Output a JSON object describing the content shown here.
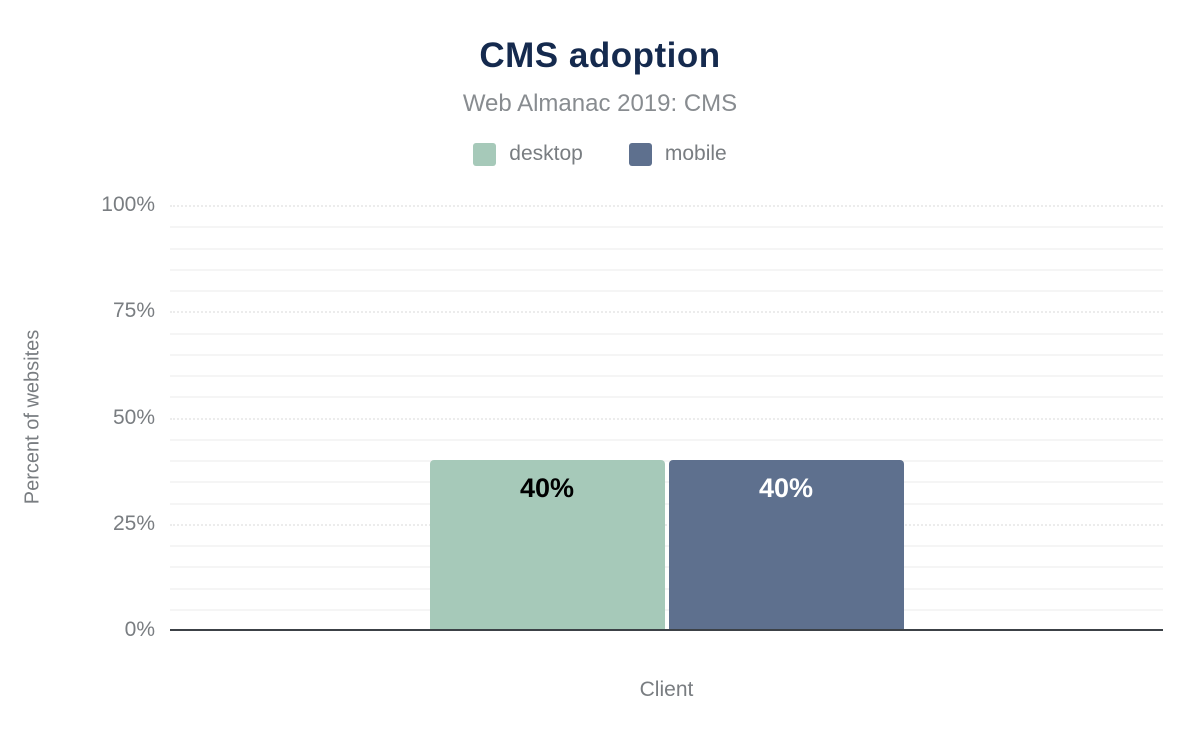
{
  "chart_data": {
    "type": "bar",
    "title": "CMS adoption",
    "subtitle": "Web Almanac 2019: CMS",
    "xlabel": "Client",
    "ylabel": "Percent of websites",
    "categories": [
      "Client"
    ],
    "series": [
      {
        "name": "desktop",
        "values": [
          40
        ],
        "data_labels": [
          "40%"
        ],
        "color": "#a6c9b9",
        "label_color": "#000000"
      },
      {
        "name": "mobile",
        "values": [
          40
        ],
        "data_labels": [
          "40%"
        ],
        "color": "#5e708e",
        "label_color": "#ffffff"
      }
    ],
    "ylim": [
      0,
      100
    ],
    "y_ticks": [
      {
        "value": 0,
        "label": "0%"
      },
      {
        "value": 25,
        "label": "25%"
      },
      {
        "value": 50,
        "label": "50%"
      },
      {
        "value": 75,
        "label": "75%"
      },
      {
        "value": 100,
        "label": "100%"
      }
    ],
    "grid": {
      "minor_step": 5,
      "major_step": 25
    },
    "legend_position": "top",
    "colors": {
      "title": "#152a4e",
      "subtitle": "#888c90",
      "axis_text": "#797d81",
      "axis_line": "#3c4146",
      "minor_grid": "#f5f5f5",
      "major_grid": "#ececec",
      "background": "#ffffff"
    }
  }
}
